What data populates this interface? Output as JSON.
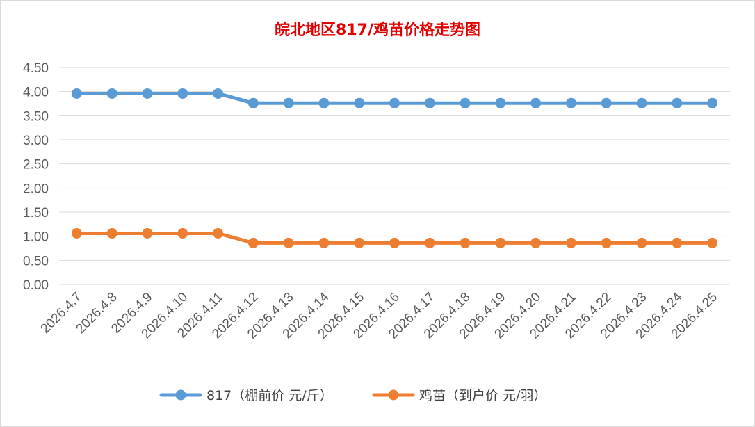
{
  "chart_data": {
    "type": "line",
    "title": "皖北地区817/鸡苗价格走势图",
    "xlabel": "",
    "ylabel": "",
    "categories": [
      "2026.4.7",
      "2026.4.8",
      "2026.4.9",
      "2026.4.10",
      "2026.4.11",
      "2026.4.12",
      "2026.4.13",
      "2026.4.14",
      "2026.4.15",
      "2026.4.16",
      "2026.4.17",
      "2026.4.18",
      "2026.4.19",
      "2026.4.20",
      "2026.4.21",
      "2026.4.22",
      "2026.4.23",
      "2026.4.24",
      "2026.4.25"
    ],
    "ylim": [
      0,
      4.5
    ],
    "yticks": [
      "0.00",
      "0.50",
      "1.00",
      "1.50",
      "2.00",
      "2.50",
      "3.00",
      "3.50",
      "4.00",
      "4.50"
    ],
    "grid": true,
    "legend_position": "bottom",
    "series": [
      {
        "name": "817（棚前价 元/斤）",
        "color": "#5b9bd5",
        "values": [
          3.96,
          3.96,
          3.96,
          3.96,
          3.96,
          3.76,
          3.76,
          3.76,
          3.76,
          3.76,
          3.76,
          3.76,
          3.76,
          3.76,
          3.76,
          3.76,
          3.76,
          3.76,
          3.76
        ]
      },
      {
        "name": "鸡苗（到户价 元/羽）",
        "color": "#ed7d31",
        "values": [
          1.06,
          1.06,
          1.06,
          1.06,
          1.06,
          0.86,
          0.86,
          0.86,
          0.86,
          0.86,
          0.86,
          0.86,
          0.86,
          0.86,
          0.86,
          0.86,
          0.86,
          0.86,
          0.86
        ]
      }
    ]
  }
}
